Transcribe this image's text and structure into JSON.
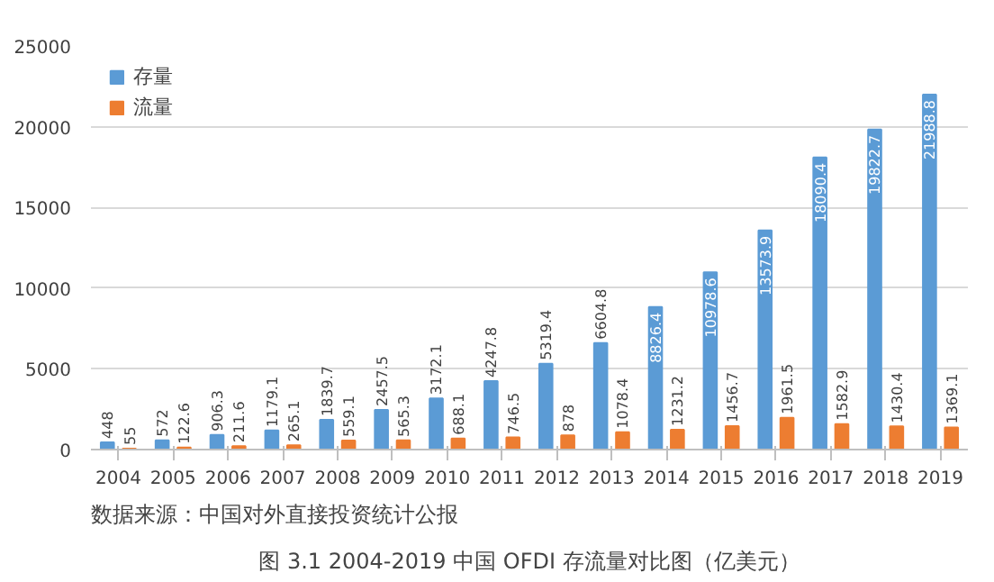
{
  "chart_data": {
    "type": "bar",
    "title": "图 3.1 2004-2019 中国 OFDI 存流量对比图（亿美元）",
    "annotations": [
      "数据来源：中国对外直接投资统计公报"
    ],
    "categories": [
      "2004",
      "2005",
      "2006",
      "2007",
      "2008",
      "2009",
      "2010",
      "2011",
      "2012",
      "2013",
      "2014",
      "2015",
      "2016",
      "2017",
      "2018",
      "2019"
    ],
    "series": [
      {
        "name": "存量",
        "color": "#5b9bd5",
        "values": [
          448,
          572,
          906.3,
          1179.1,
          1839.7,
          2457.5,
          3172.1,
          4247.8,
          5319.4,
          6604.8,
          8826.4,
          10978.6,
          13573.9,
          18090.4,
          19822.7,
          21988.8
        ]
      },
      {
        "name": "流量",
        "color": "#ed7d31",
        "values": [
          55,
          122.6,
          211.6,
          265.1,
          559.1,
          565.3,
          688.1,
          746.5,
          878,
          1078.4,
          1231.2,
          1456.7,
          1961.5,
          1582.9,
          1430.4,
          1369.1
        ]
      }
    ],
    "ylim": [
      0,
      25000
    ],
    "yticks": [
      0,
      5000,
      10000,
      15000,
      20000,
      25000
    ],
    "grid": "y",
    "legend": "top left",
    "data_labels": true
  }
}
